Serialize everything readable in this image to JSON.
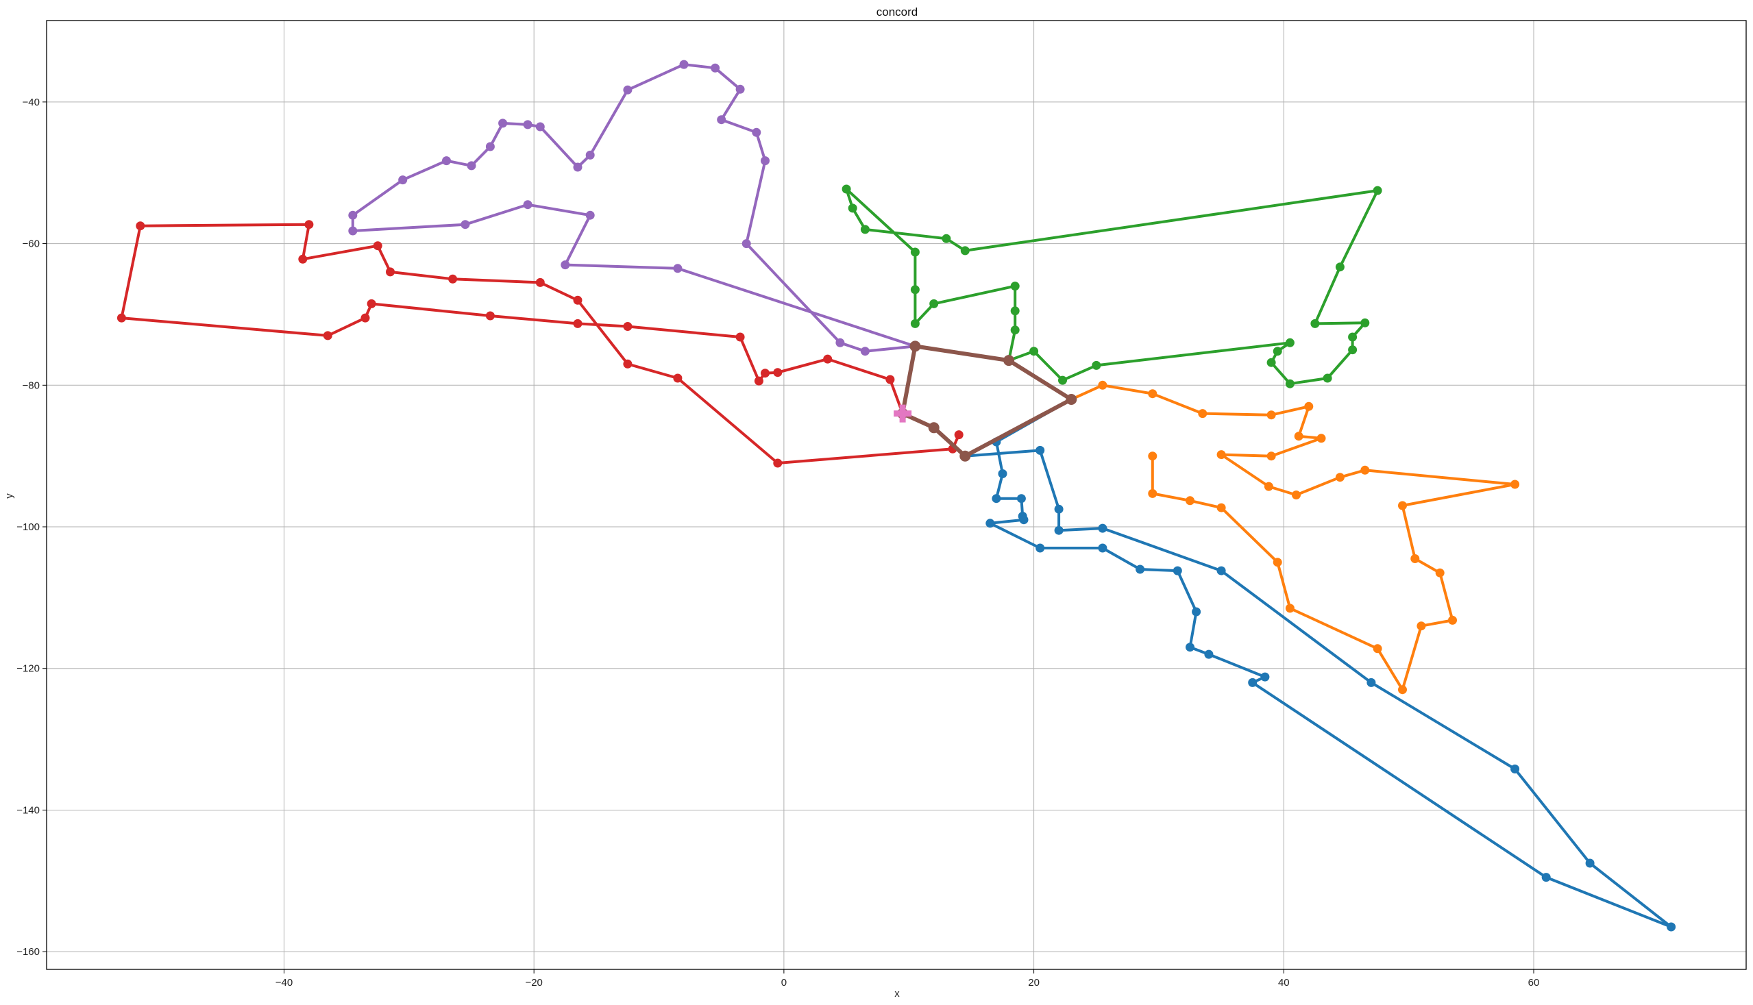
{
  "chart_data": {
    "type": "line",
    "title": "concord",
    "xlabel": "x",
    "ylabel": "y",
    "xlim": [
      -59,
      77
    ],
    "ylim": [
      -162.5,
      -28.5
    ],
    "xticks": [
      -40,
      -20,
      0,
      20,
      40,
      60
    ],
    "yticks": [
      -40,
      -60,
      -80,
      -100,
      -120,
      -140,
      -160
    ],
    "grid": true,
    "series": [
      {
        "color": "#1f77b4",
        "points": [
          [
            23,
            -82
          ],
          [
            17,
            -88
          ],
          [
            17.5,
            -92.5
          ],
          [
            17,
            -96
          ],
          [
            19,
            -96
          ],
          [
            19.1,
            -98.5
          ],
          [
            19.2,
            -99
          ],
          [
            16.5,
            -99.5
          ],
          [
            20.5,
            -103
          ],
          [
            25.5,
            -103
          ],
          [
            28.5,
            -106
          ],
          [
            31.5,
            -106.2
          ],
          [
            33,
            -112
          ],
          [
            32.5,
            -117
          ],
          [
            34,
            -118
          ],
          [
            38.5,
            -121.2
          ],
          [
            37.5,
            -122
          ],
          [
            61,
            -149.5
          ],
          [
            71,
            -156.5
          ],
          [
            64.5,
            -147.5
          ],
          [
            58.5,
            -134.2
          ],
          [
            47,
            -122
          ],
          [
            35,
            -106.2
          ],
          [
            25.5,
            -100.2
          ],
          [
            22,
            -100.5
          ],
          [
            22,
            -97.5
          ],
          [
            20.5,
            -89.2
          ],
          [
            14.5,
            -90
          ]
        ]
      },
      {
        "color": "#ff7f0e",
        "points": [
          [
            23,
            -82
          ],
          [
            25.5,
            -80
          ],
          [
            29.5,
            -81.2
          ],
          [
            33.5,
            -84
          ],
          [
            39,
            -84.2
          ],
          [
            42,
            -83
          ],
          [
            41.2,
            -87.2
          ],
          [
            43,
            -87.5
          ],
          [
            39,
            -90
          ],
          [
            35,
            -89.8
          ],
          [
            38.8,
            -94.3
          ],
          [
            41,
            -95.5
          ],
          [
            44.5,
            -93
          ],
          [
            46.5,
            -92
          ],
          [
            58.5,
            -94
          ],
          [
            49.5,
            -97
          ],
          [
            50.5,
            -104.5
          ],
          [
            52.5,
            -106.5
          ],
          [
            53.5,
            -113.2
          ],
          [
            51,
            -114
          ],
          [
            49.5,
            -123
          ],
          [
            47.5,
            -117.2
          ],
          [
            40.5,
            -111.5
          ],
          [
            39.5,
            -105
          ],
          [
            35,
            -97.3
          ],
          [
            32.5,
            -96.3
          ],
          [
            29.5,
            -95.3
          ],
          [
            29.5,
            -90
          ]
        ]
      },
      {
        "color": "#2ca02c",
        "points": [
          [
            18,
            -76.5
          ],
          [
            20,
            -75.2
          ],
          [
            22.3,
            -79.3
          ],
          [
            25,
            -77.2
          ],
          [
            40.5,
            -74
          ],
          [
            39.5,
            -75.2
          ],
          [
            39,
            -76.8
          ],
          [
            40.5,
            -79.8
          ],
          [
            43.5,
            -79
          ],
          [
            45.5,
            -75
          ],
          [
            45.5,
            -73.2
          ],
          [
            46.5,
            -71.2
          ],
          [
            42.5,
            -71.3
          ],
          [
            44.5,
            -63.3
          ],
          [
            47.5,
            -52.5
          ],
          [
            14.5,
            -61
          ],
          [
            13,
            -59.3
          ],
          [
            6.5,
            -58
          ],
          [
            5.5,
            -55
          ],
          [
            5,
            -52.3
          ],
          [
            10.5,
            -61.2
          ],
          [
            10.5,
            -66.5
          ],
          [
            10.5,
            -71.3
          ],
          [
            12,
            -68.5
          ],
          [
            18.5,
            -66
          ],
          [
            18.5,
            -69.5
          ],
          [
            18.5,
            -72.2
          ],
          [
            18,
            -76.5
          ]
        ]
      },
      {
        "color": "#d62728",
        "points": [
          [
            9.5,
            -84
          ],
          [
            8.5,
            -79.2
          ],
          [
            3.5,
            -76.3
          ],
          [
            -0.5,
            -78.2
          ],
          [
            -1.5,
            -78.3
          ],
          [
            -2,
            -79.4
          ],
          [
            -3.5,
            -73.2
          ],
          [
            -12.5,
            -71.7
          ],
          [
            -16.5,
            -71.3
          ],
          [
            -23.5,
            -70.2
          ],
          [
            -33,
            -68.5
          ],
          [
            -33.5,
            -70.5
          ],
          [
            -36.5,
            -73
          ],
          [
            -53,
            -70.5
          ],
          [
            -51.5,
            -57.5
          ],
          [
            -38,
            -57.3
          ],
          [
            -38.5,
            -62.2
          ],
          [
            -32.5,
            -60.3
          ],
          [
            -31.5,
            -64
          ],
          [
            -26.5,
            -65
          ],
          [
            -19.5,
            -65.5
          ],
          [
            -16.5,
            -68
          ],
          [
            -12.5,
            -77
          ],
          [
            -8.5,
            -79
          ],
          [
            -0.5,
            -91
          ],
          [
            13.5,
            -89
          ],
          [
            14,
            -87
          ]
        ]
      },
      {
        "color": "#9467bd",
        "points": [
          [
            10.5,
            -74.5
          ],
          [
            6.5,
            -75.2
          ],
          [
            4.5,
            -74
          ],
          [
            -3,
            -60
          ],
          [
            -1.5,
            -48.3
          ],
          [
            -2.2,
            -44.3
          ],
          [
            -5,
            -42.5
          ],
          [
            -3.5,
            -38.2
          ],
          [
            -5.5,
            -35.2
          ],
          [
            -8,
            -34.7
          ],
          [
            -12.5,
            -38.3
          ],
          [
            -15.5,
            -47.5
          ],
          [
            -16.5,
            -49.2
          ],
          [
            -19.5,
            -43.5
          ],
          [
            -20.5,
            -43.2
          ],
          [
            -22.5,
            -43
          ],
          [
            -23.5,
            -46.3
          ],
          [
            -25,
            -49
          ],
          [
            -27,
            -48.3
          ],
          [
            -30.5,
            -51
          ],
          [
            -34.5,
            -56
          ],
          [
            -34.5,
            -58.2
          ],
          [
            -25.5,
            -57.3
          ],
          [
            -20.5,
            -54.5
          ],
          [
            -15.5,
            -56
          ],
          [
            -17.5,
            -63
          ],
          [
            -8.5,
            -63.5
          ],
          [
            10.5,
            -74.5
          ]
        ]
      },
      {
        "color": "#8c564b",
        "points": [
          [
            9.5,
            -84
          ],
          [
            10.5,
            -74.5
          ],
          [
            18,
            -76.5
          ],
          [
            23,
            -82
          ],
          [
            14.5,
            -90
          ],
          [
            12,
            -86
          ],
          [
            9.5,
            -84
          ]
        ]
      }
    ],
    "start_marker": {
      "color": "#e377c2",
      "point": [
        9.5,
        -84
      ]
    }
  }
}
